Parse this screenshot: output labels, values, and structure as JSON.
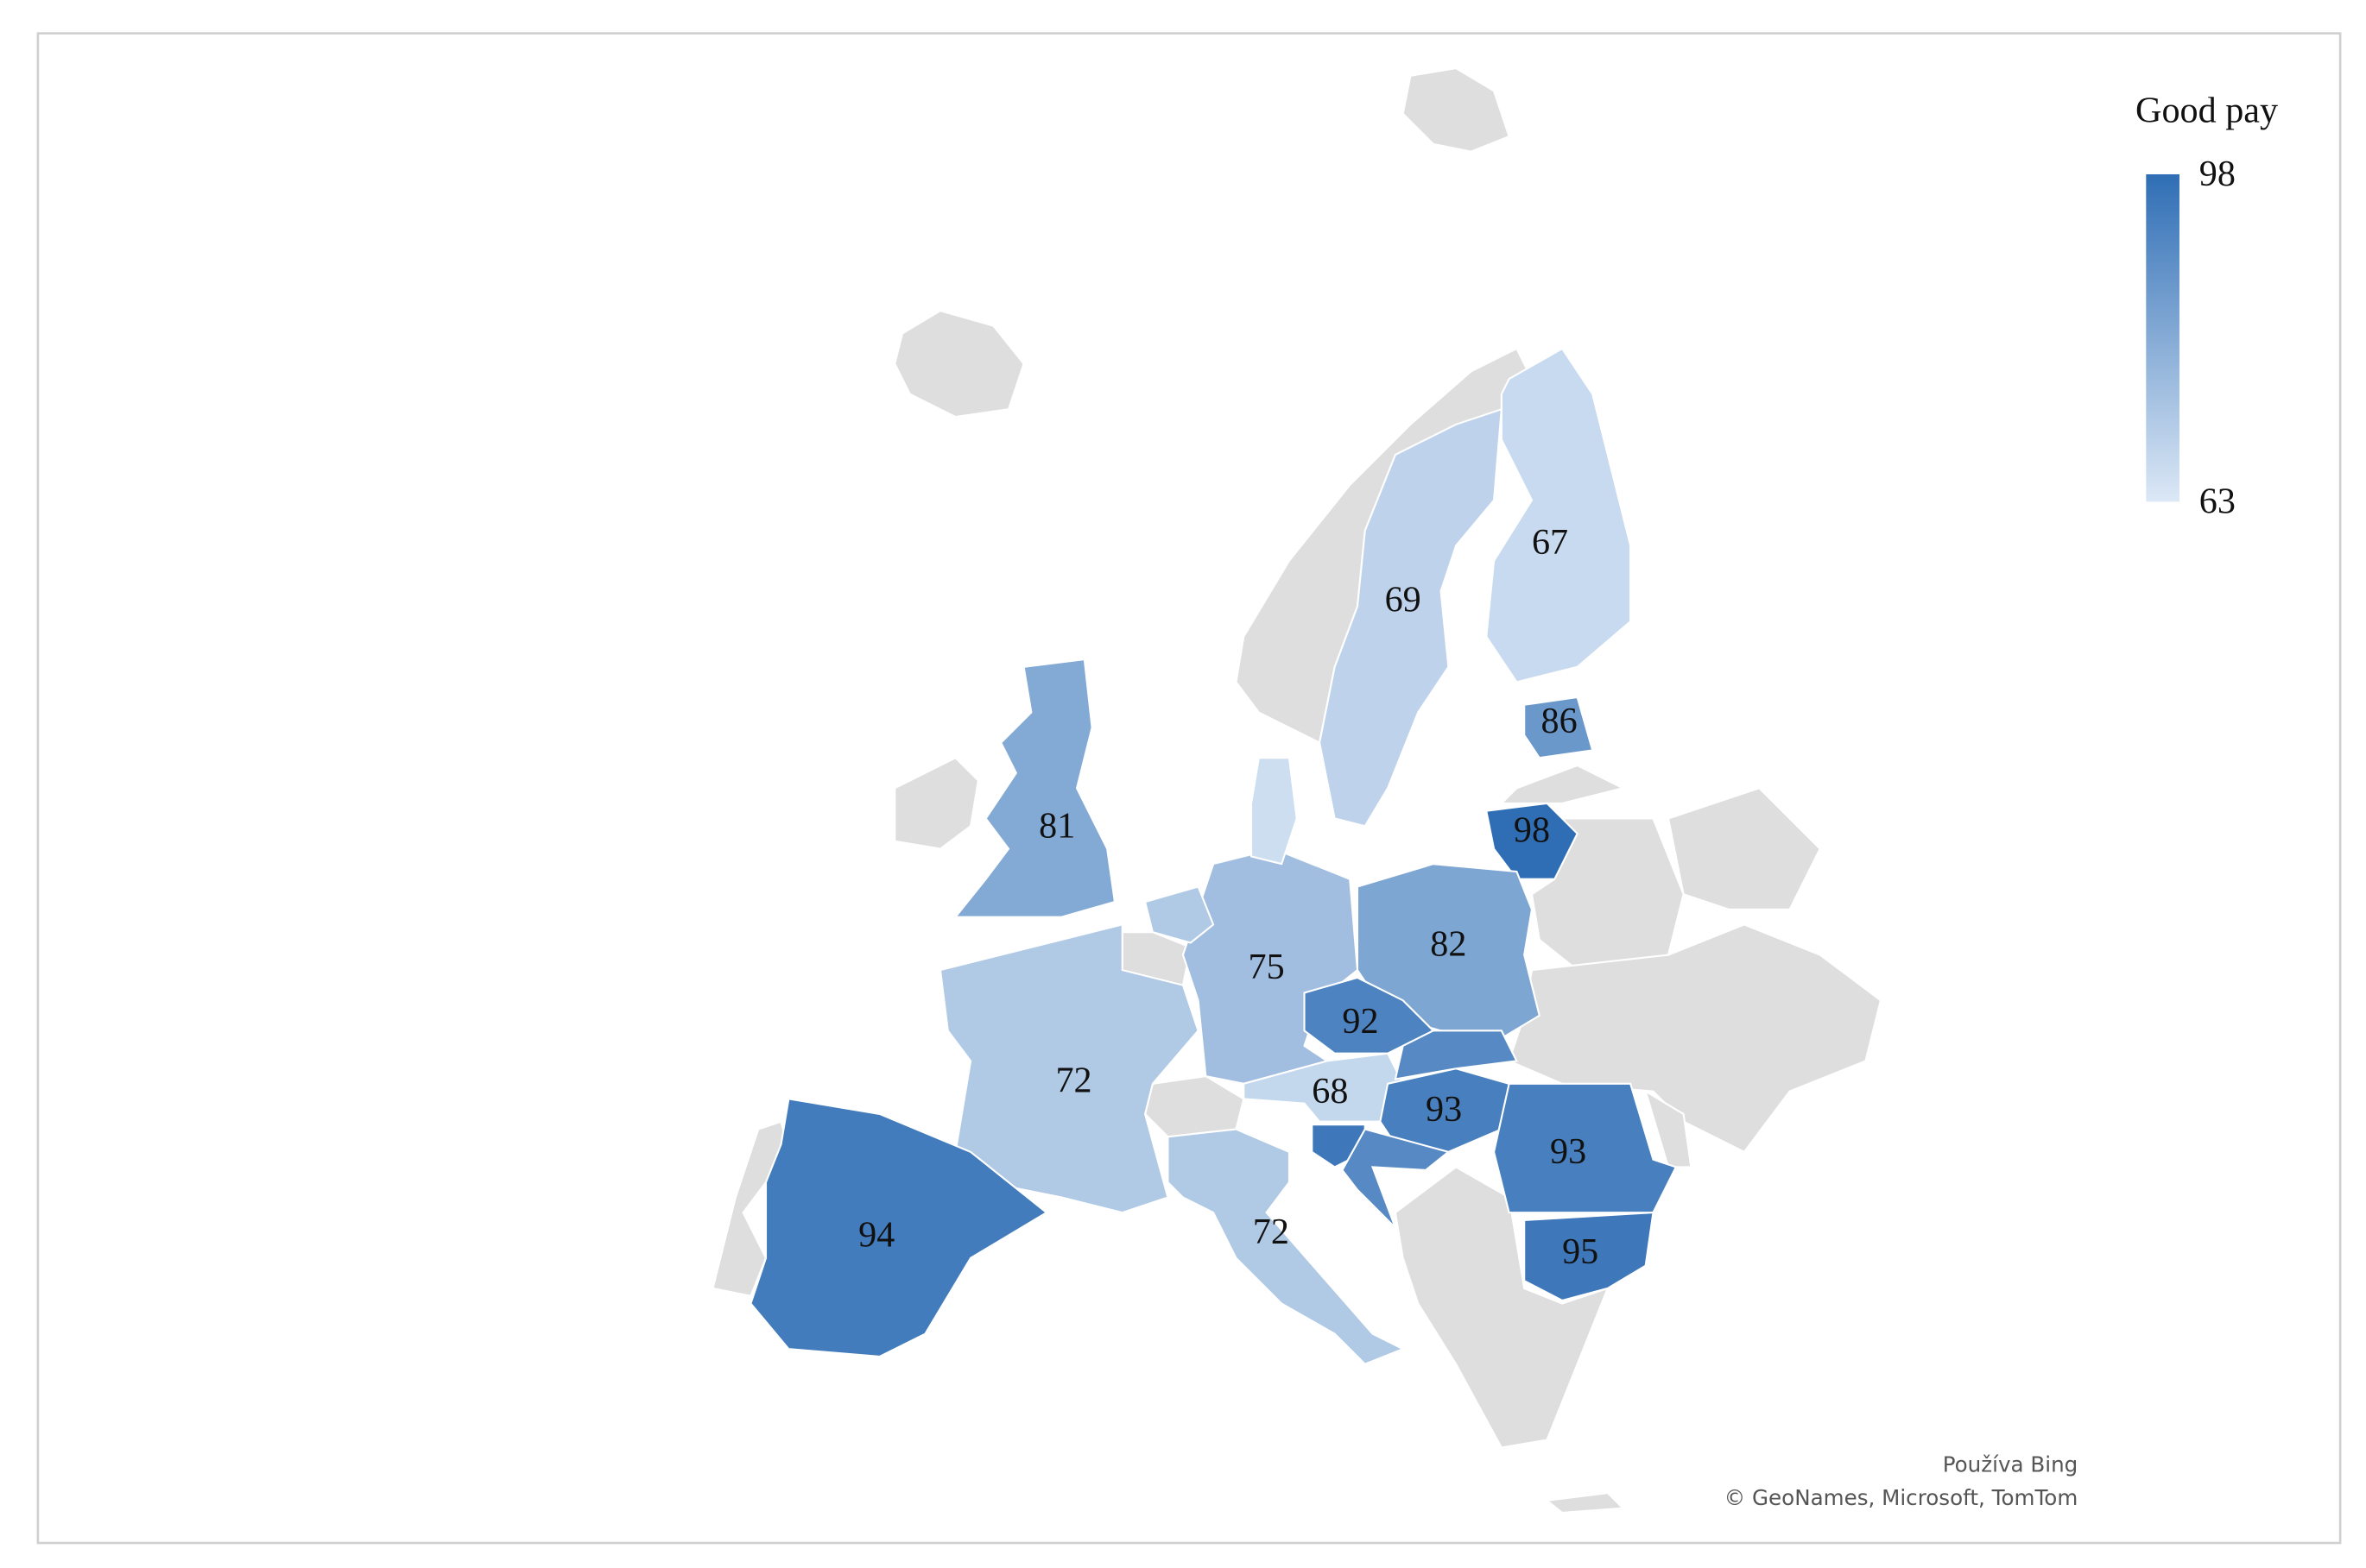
{
  "chart_data": {
    "type": "choropleth",
    "legend_title": "Good pay",
    "scale": {
      "min": 63,
      "max": 98,
      "low_color": "#dce8f6",
      "high_color": "#2f6eb5"
    },
    "values": [
      67,
      69,
      86,
      98,
      81,
      82,
      75,
      92,
      72,
      68,
      93,
      93,
      94,
      72,
      95,
      90,
      95,
      90,
      66,
      72
    ],
    "value_labels": [
      "67",
      "69",
      "86",
      "98",
      "81",
      "82",
      "75",
      "92",
      "72",
      "68",
      "93",
      "93",
      "94",
      "72",
      "95",
      null,
      null,
      null,
      null,
      null
    ],
    "attribution": [
      "Používa Bing",
      "© GeoNames, Microsoft, TomTom"
    ]
  }
}
